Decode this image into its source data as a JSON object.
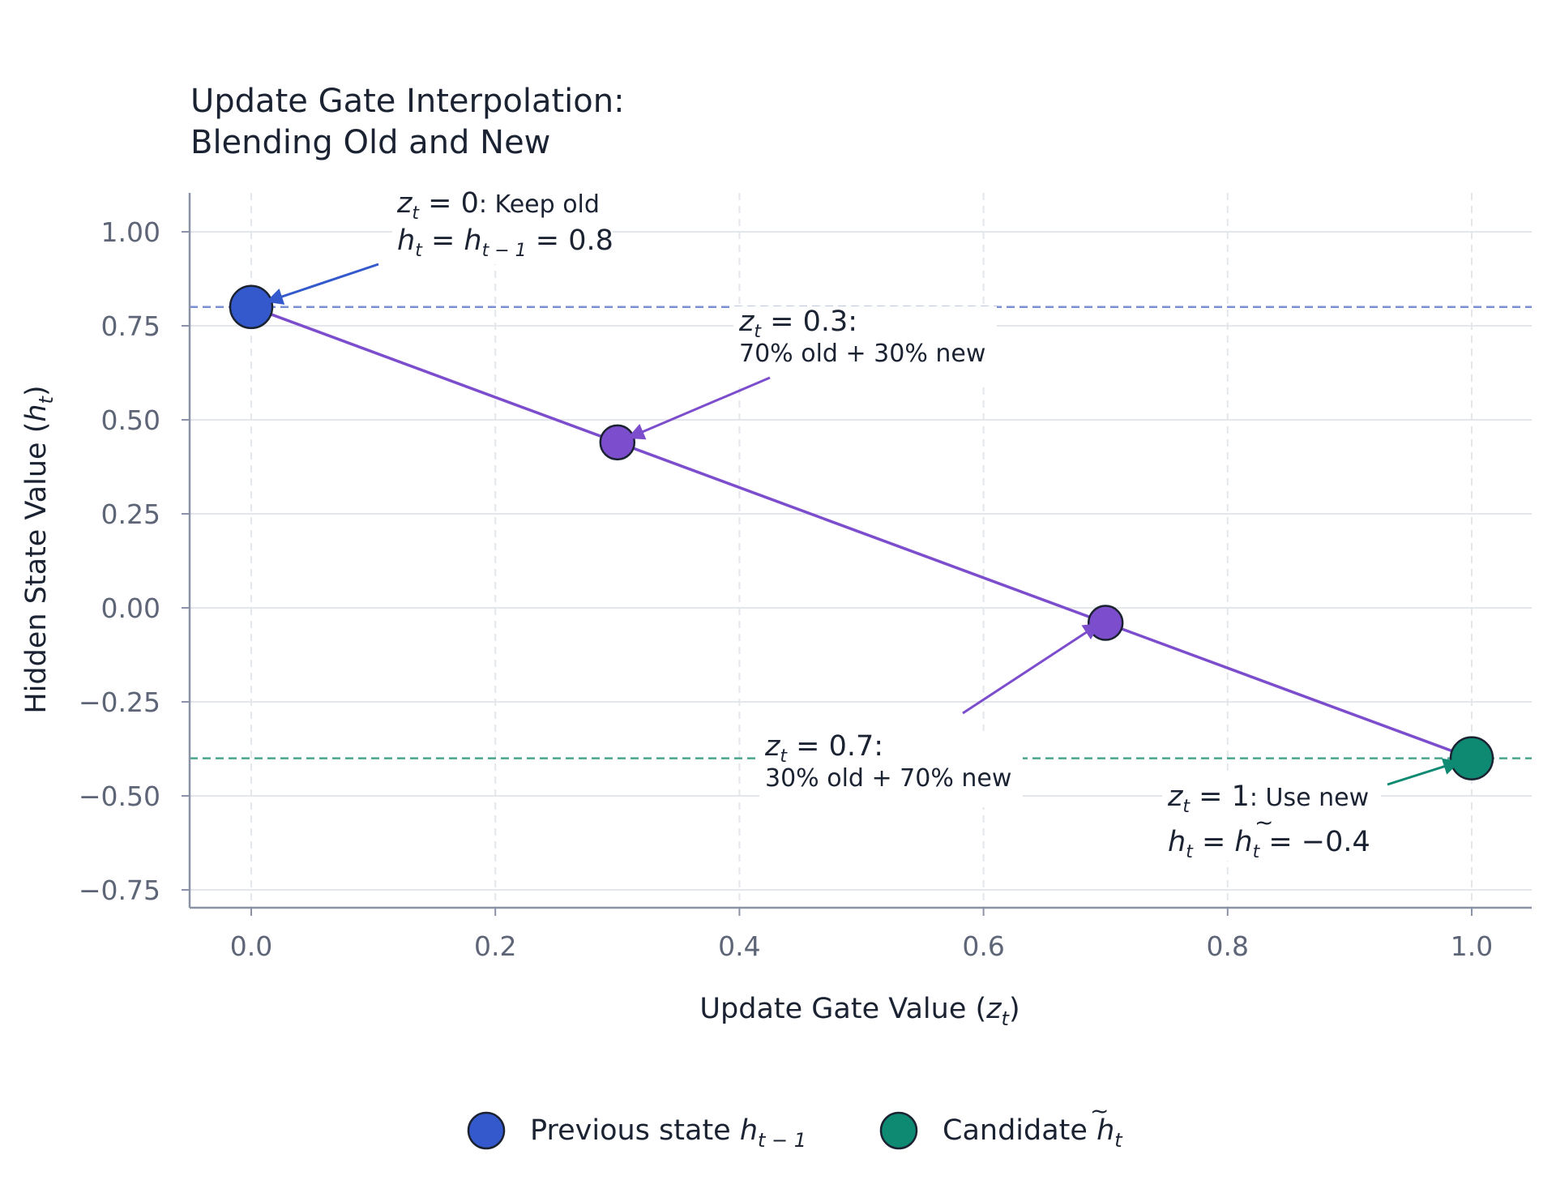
{
  "chart_data": {
    "type": "line",
    "title": [
      "Update Gate Interpolation:",
      "Blending Old and New"
    ],
    "xlabel": "Update Gate Value (z_t)",
    "ylabel": "Hidden State Value (h_t)",
    "xlim": [
      -0.05,
      1.05
    ],
    "ylim": [
      -0.8,
      1.1
    ],
    "x_ticks": [
      0.0,
      0.2,
      0.4,
      0.6,
      0.8,
      1.0
    ],
    "x_tick_labels": [
      "0.0",
      "0.2",
      "0.4",
      "0.6",
      "0.8",
      "1.0"
    ],
    "y_ticks": [
      1.0,
      0.75,
      0.5,
      0.25,
      0.0,
      -0.25,
      -0.5,
      -0.75
    ],
    "y_tick_labels": [
      "1.00",
      "0.75",
      "0.50",
      "0.25",
      "0.00",
      "−0.25",
      "−0.50",
      "−0.75"
    ],
    "grid": true,
    "series": [
      {
        "x": [
          0.0,
          1.0
        ],
        "y": [
          0.8,
          -0.4
        ],
        "color": "#7c4dcc"
      }
    ],
    "reference_lines": [
      {
        "y": 0.8,
        "color": "#7b8fd8"
      },
      {
        "y": -0.4,
        "color": "#4aa58f"
      }
    ],
    "points": [
      {
        "x": 0.0,
        "y": 0.8,
        "color": "#3459cc",
        "size": "large"
      },
      {
        "x": 0.3,
        "y": 0.44,
        "color": "#7c4dcc",
        "size": "small"
      },
      {
        "x": 0.7,
        "y": -0.04,
        "color": "#7c4dcc",
        "size": "small"
      },
      {
        "x": 1.0,
        "y": -0.4,
        "color": "#0e8a73",
        "size": "large"
      }
    ],
    "annotations": [
      {
        "line1": "z_t = 0: Keep old",
        "line2": "h_t = h_{t−1} = 0.8",
        "color": "#3459cc"
      },
      {
        "line1": "z_t = 0.3:",
        "line2": "70% old + 30% new",
        "color": "#7c4dcc"
      },
      {
        "line1": "z_t = 0.7:",
        "line2": "30% old + 70% new",
        "color": "#7c4dcc"
      },
      {
        "line1": "z_t = 1: Use new",
        "line2": "h_t = h̃_t = −0.4",
        "color": "#0e8a73"
      }
    ],
    "legend": {
      "placement": "bottom-center",
      "items": [
        {
          "label": "Previous state h_{t−1}",
          "color": "#3459cc"
        },
        {
          "label": "Candidate h̃_t",
          "color": "#0e8a73"
        }
      ]
    }
  },
  "text": {
    "title_line1": "Update Gate Interpolation:",
    "title_line2": "Blending Old and New",
    "xlabel_main": "Update Gate Value (",
    "xlabel_var": "z",
    "xlabel_sub": "t",
    "xlabel_close": ")",
    "ylabel_main": "Hidden State Value (",
    "ylabel_var": "h",
    "ylabel_sub": "t",
    "ylabel_close": ")",
    "ann0_rest": ": Keep old",
    "ann1_rest": ":",
    "ann1_line2": "70% old + 30% new",
    "ann2_rest": ":",
    "ann2_line2": "30% old + 70% new",
    "ann3_rest": ": Use new",
    "legend_prev": "Previous state ",
    "legend_cand": "Candidate "
  }
}
